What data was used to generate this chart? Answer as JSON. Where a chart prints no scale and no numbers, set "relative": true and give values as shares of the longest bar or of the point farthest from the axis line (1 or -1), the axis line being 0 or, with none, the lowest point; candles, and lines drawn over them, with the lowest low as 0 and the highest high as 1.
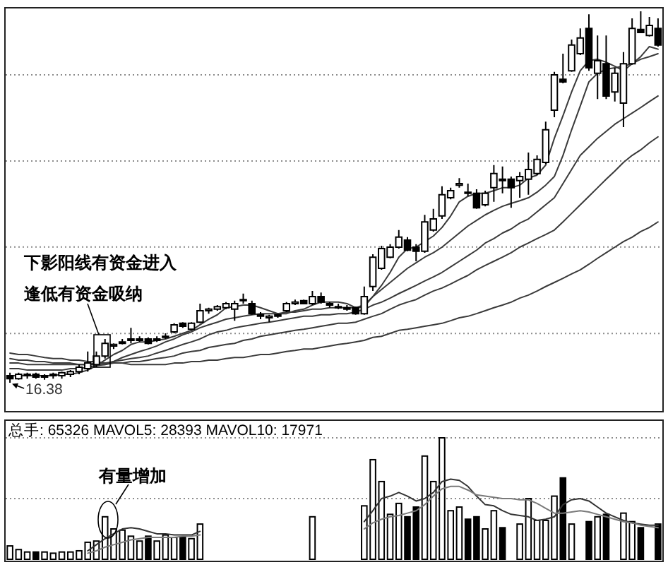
{
  "chart_data": [
    {
      "type": "candlestick",
      "relative": true,
      "grid": "y",
      "color": "#000000",
      "categories": [
        null,
        null,
        null,
        null,
        null,
        null,
        null,
        null,
        null,
        null,
        null,
        null,
        null,
        null,
        null,
        null,
        null,
        null,
        null,
        null,
        null,
        null,
        null,
        null,
        null,
        null,
        null,
        null,
        null,
        null,
        null,
        null,
        null,
        null,
        null,
        null,
        null,
        null,
        null,
        null,
        null,
        null,
        null,
        null,
        null,
        null,
        null,
        null,
        null,
        null,
        null,
        null,
        null,
        null,
        null,
        null,
        null,
        null,
        null,
        null,
        null,
        null,
        null,
        null,
        null,
        null,
        null,
        null,
        null,
        null,
        null,
        null,
        null,
        null,
        null,
        null
      ],
      "ohlc": [
        [
          0.019,
          0.027,
          0,
          0.011
        ],
        [
          0.011,
          0.027,
          0.008,
          0.023
        ],
        [
          0.019,
          0.027,
          0.011,
          0.023
        ],
        [
          0.023,
          0.027,
          0.011,
          0.015
        ],
        [
          0.015,
          0.023,
          0.008,
          0.019
        ],
        [
          0.019,
          0.027,
          0.011,
          0.023
        ],
        [
          0.019,
          0.03,
          0.011,
          0.027
        ],
        [
          0.023,
          0.034,
          0.015,
          0.03
        ],
        [
          0.03,
          0.049,
          0.023,
          0.042
        ],
        [
          0.038,
          0.084,
          0.03,
          0.053
        ],
        [
          0.049,
          0.084,
          0.042,
          0.072
        ],
        [
          0.072,
          0.118,
          0.065,
          0.106
        ],
        [
          0.099,
          0.106,
          0.091,
          0.103
        ],
        [
          0.106,
          0.118,
          0.103,
          0.11
        ],
        [
          0.114,
          0.148,
          0.106,
          0.118
        ],
        [
          0.114,
          0.125,
          0.11,
          0.118
        ],
        [
          0.118,
          0.122,
          0.103,
          0.106
        ],
        [
          0.114,
          0.125,
          0.11,
          0.118
        ],
        [
          0.122,
          0.133,
          0.118,
          0.125
        ],
        [
          0.137,
          0.16,
          0.133,
          0.156
        ],
        [
          0.16,
          0.163,
          0.148,
          0.152
        ],
        [
          0.144,
          0.163,
          0.141,
          0.16
        ],
        [
          0.163,
          0.213,
          0.16,
          0.194
        ],
        [
          0.194,
          0.202,
          0.186,
          0.198
        ],
        [
          0.198,
          0.209,
          0.194,
          0.205
        ],
        [
          0.202,
          0.217,
          0.198,
          0.213
        ],
        [
          0.198,
          0.221,
          0.167,
          0.213
        ],
        [
          0.221,
          0.24,
          0.213,
          0.224
        ],
        [
          0.213,
          0.221,
          0.183,
          0.186
        ],
        [
          0.183,
          0.19,
          0.171,
          0.179
        ],
        [
          0.175,
          0.183,
          0.163,
          0.179
        ],
        [
          0.179,
          0.186,
          0.175,
          0.183
        ],
        [
          0.194,
          0.217,
          0.19,
          0.213
        ],
        [
          0.213,
          0.224,
          0.209,
          0.217
        ],
        [
          0.221,
          0.224,
          0.213,
          0.213
        ],
        [
          0.213,
          0.247,
          0.209,
          0.232
        ],
        [
          0.232,
          0.243,
          0.213,
          0.217
        ],
        [
          0.209,
          0.217,
          0.202,
          0.213
        ],
        [
          0.205,
          0.213,
          0.198,
          0.202
        ],
        [
          0.202,
          0.209,
          0.194,
          0.198
        ],
        [
          0.202,
          0.205,
          0.183,
          0.186
        ],
        [
          0.186,
          0.259,
          0.183,
          0.232
        ],
        [
          0.259,
          0.346,
          0.247,
          0.338
        ],
        [
          0.308,
          0.369,
          0.304,
          0.361
        ],
        [
          0.338,
          0.373,
          0.335,
          0.365
        ],
        [
          0.365,
          0.411,
          0.361,
          0.392
        ],
        [
          0.384,
          0.392,
          0.354,
          0.357
        ],
        [
          0.365,
          0.373,
          0.327,
          0.354
        ],
        [
          0.354,
          0.452,
          0.35,
          0.433
        ],
        [
          0.411,
          0.468,
          0.407,
          0.441
        ],
        [
          0.449,
          0.529,
          0.441,
          0.506
        ],
        [
          0.498,
          0.525,
          0.494,
          0.517
        ],
        [
          0.532,
          0.551,
          0.525,
          0.536
        ],
        [
          0.513,
          0.536,
          0.502,
          0.51
        ],
        [
          0.51,
          0.521,
          0.468,
          0.471
        ],
        [
          0.479,
          0.517,
          0.475,
          0.51
        ],
        [
          0.525,
          0.586,
          0.487,
          0.563
        ],
        [
          0.548,
          0.582,
          0.51,
          0.544
        ],
        [
          0.548,
          0.555,
          0.471,
          0.525
        ],
        [
          0.544,
          0.567,
          0.498,
          0.555
        ],
        [
          0.548,
          0.62,
          0.506,
          0.574
        ],
        [
          0.563,
          0.612,
          0.559,
          0.601
        ],
        [
          0.593,
          0.703,
          0.589,
          0.681
        ],
        [
          0.734,
          0.837,
          0.715,
          0.829
        ],
        [
          0.817,
          0.886,
          0.806,
          0.81
        ],
        [
          0.84,
          0.924,
          0.837,
          0.909
        ],
        [
          0.886,
          0.954,
          0.882,
          0.928
        ],
        [
          0.954,
          0.992,
          0.84,
          0.848
        ],
        [
          0.833,
          0.935,
          0.764,
          0.867
        ],
        [
          0.859,
          0.935,
          0.764,
          0.772
        ],
        [
          0.783,
          0.848,
          0.757,
          0.833
        ],
        [
          0.753,
          0.89,
          0.688,
          0.859
        ],
        [
          0.859,
          0.981,
          0.856,
          0.954
        ],
        [
          0.951,
          1,
          0.943,
          0.943
        ],
        [
          0.935,
          0.985,
          0.932,
          0.962
        ],
        [
          0.954,
          0.981,
          0.905,
          0.909
        ]
      ],
      "series": [
        {
          "type": "line",
          "color": "#3a3a3a",
          "values": [
            0.019,
            0.019,
            0.019,
            0.019,
            0.019,
            0.019,
            0.023,
            0.023,
            0.027,
            0.034,
            0.046,
            0.061,
            0.076,
            0.087,
            0.103,
            0.11,
            0.11,
            0.114,
            0.118,
            0.125,
            0.133,
            0.141,
            0.156,
            0.171,
            0.183,
            0.202,
            0.205,
            0.209,
            0.209,
            0.202,
            0.194,
            0.186,
            0.186,
            0.194,
            0.198,
            0.209,
            0.217,
            0.217,
            0.217,
            0.213,
            0.202,
            0.205,
            0.232,
            0.262,
            0.297,
            0.338,
            0.361,
            0.365,
            0.38,
            0.395,
            0.418,
            0.449,
            0.487,
            0.502,
            0.51,
            0.51,
            0.517,
            0.525,
            0.525,
            0.532,
            0.551,
            0.559,
            0.586,
            0.658,
            0.719,
            0.783,
            0.84,
            0.867,
            0.871,
            0.863,
            0.852,
            0.84,
            0.859,
            0.878,
            0.905,
            0.898
          ]
        },
        {
          "type": "line",
          "color": "#3a3a3a",
          "values": [
            0.038,
            0.038,
            0.034,
            0.034,
            0.034,
            0.034,
            0.034,
            0.038,
            0.038,
            0.042,
            0.046,
            0.049,
            0.057,
            0.068,
            0.076,
            0.084,
            0.091,
            0.099,
            0.11,
            0.118,
            0.129,
            0.137,
            0.148,
            0.156,
            0.163,
            0.171,
            0.175,
            0.179,
            0.183,
            0.186,
            0.186,
            0.186,
            0.19,
            0.19,
            0.194,
            0.198,
            0.198,
            0.202,
            0.202,
            0.202,
            0.202,
            0.209,
            0.232,
            0.251,
            0.27,
            0.289,
            0.308,
            0.323,
            0.338,
            0.35,
            0.365,
            0.384,
            0.403,
            0.422,
            0.437,
            0.452,
            0.464,
            0.475,
            0.483,
            0.49,
            0.498,
            0.513,
            0.532,
            0.555,
            0.612,
            0.681,
            0.745,
            0.81,
            0.833,
            0.844,
            0.848,
            0.852,
            0.859,
            0.871,
            0.878,
            0.886
          ]
        },
        {
          "type": "line",
          "color": "#3a3a3a",
          "values": [
            0.053,
            0.053,
            0.049,
            0.049,
            0.049,
            0.049,
            0.049,
            0.049,
            0.049,
            0.049,
            0.053,
            0.053,
            0.057,
            0.061,
            0.065,
            0.068,
            0.072,
            0.08,
            0.087,
            0.095,
            0.103,
            0.11,
            0.118,
            0.129,
            0.137,
            0.141,
            0.148,
            0.152,
            0.156,
            0.16,
            0.163,
            0.167,
            0.171,
            0.175,
            0.179,
            0.179,
            0.183,
            0.183,
            0.186,
            0.186,
            0.19,
            0.198,
            0.209,
            0.217,
            0.228,
            0.24,
            0.251,
            0.262,
            0.274,
            0.285,
            0.297,
            0.312,
            0.327,
            0.342,
            0.357,
            0.376,
            0.388,
            0.403,
            0.414,
            0.43,
            0.441,
            0.46,
            0.479,
            0.498,
            0.536,
            0.574,
            0.612,
            0.635,
            0.658,
            0.677,
            0.696,
            0.711,
            0.726,
            0.741,
            0.757,
            0.772
          ]
        },
        {
          "type": "line",
          "color": "#3a3a3a",
          "values": [
            0.065,
            0.061,
            0.061,
            0.057,
            0.057,
            0.053,
            0.053,
            0.053,
            0.049,
            0.049,
            0.049,
            0.049,
            0.053,
            0.053,
            0.057,
            0.057,
            0.061,
            0.065,
            0.068,
            0.072,
            0.08,
            0.084,
            0.087,
            0.095,
            0.099,
            0.103,
            0.106,
            0.114,
            0.118,
            0.125,
            0.129,
            0.133,
            0.137,
            0.141,
            0.144,
            0.148,
            0.152,
            0.156,
            0.16,
            0.16,
            0.163,
            0.171,
            0.179,
            0.186,
            0.198,
            0.209,
            0.217,
            0.224,
            0.236,
            0.247,
            0.255,
            0.266,
            0.278,
            0.289,
            0.304,
            0.316,
            0.327,
            0.338,
            0.35,
            0.365,
            0.376,
            0.388,
            0.399,
            0.411,
            0.433,
            0.456,
            0.479,
            0.502,
            0.525,
            0.548,
            0.57,
            0.593,
            0.612,
            0.627,
            0.646,
            0.662
          ]
        },
        {
          "type": "line",
          "color": "#3a3a3a",
          "values": [
            0.08,
            0.076,
            0.076,
            0.072,
            0.068,
            0.065,
            0.065,
            0.061,
            0.061,
            0.057,
            0.057,
            0.053,
            0.053,
            0.053,
            0.049,
            0.049,
            0.049,
            0.049,
            0.049,
            0.053,
            0.053,
            0.057,
            0.057,
            0.061,
            0.061,
            0.065,
            0.068,
            0.068,
            0.072,
            0.076,
            0.076,
            0.08,
            0.084,
            0.087,
            0.091,
            0.091,
            0.095,
            0.099,
            0.103,
            0.106,
            0.11,
            0.114,
            0.122,
            0.125,
            0.133,
            0.141,
            0.144,
            0.148,
            0.152,
            0.156,
            0.16,
            0.167,
            0.175,
            0.179,
            0.186,
            0.194,
            0.202,
            0.209,
            0.217,
            0.228,
            0.236,
            0.247,
            0.259,
            0.27,
            0.281,
            0.293,
            0.304,
            0.319,
            0.335,
            0.35,
            0.365,
            0.38,
            0.392,
            0.407,
            0.418,
            0.433
          ]
        }
      ],
      "annotations": [
        "下影阳线有资金进入",
        "逢低有资金吸纳",
        {
          "text": "16.38",
          "y": 0
        }
      ]
    },
    {
      "type": "bar",
      "relative": true,
      "title": "总手: 65326 MAVOL5: 28393 MAVOL10: 17971",
      "ref_lines": [
        {
          "axis": "y",
          "value": 0.5,
          "line_style": "dotted",
          "color": "#8c8c8c"
        },
        {
          "axis": "y",
          "value": 1,
          "line_style": "dotted",
          "color": "#8c8c8c"
        }
      ],
      "categories": [
        null,
        null,
        null,
        null,
        null,
        null,
        null,
        null,
        null,
        null,
        null,
        null,
        null,
        null,
        null,
        null,
        null,
        null,
        null,
        null,
        null,
        null,
        null,
        null,
        null,
        null,
        null,
        null,
        null,
        null,
        null,
        null,
        null,
        null,
        null,
        null,
        null,
        null,
        null,
        null,
        null,
        null,
        null,
        null,
        null,
        null,
        null,
        null,
        null,
        null,
        null,
        null,
        null,
        null,
        null,
        null,
        null,
        null,
        null,
        null,
        null,
        null,
        null,
        null,
        null,
        null,
        null,
        null,
        null,
        null,
        null,
        null,
        null,
        null,
        null,
        null
      ],
      "series": [
        {
          "type": "bar",
          "color": "#000000",
          "values": [
            0.11,
            0.08,
            0.06,
            0.06,
            0.06,
            0.05,
            0.06,
            0.06,
            0.07,
            0.14,
            0.15,
            0.35,
            0.25,
            0.24,
            0.19,
            0.15,
            0.19,
            0.15,
            0.2,
            0.18,
            0.18,
            0.17,
            0.29,
            null,
            null,
            null,
            null,
            null,
            null,
            null,
            null,
            null,
            null,
            null,
            null,
            0.35,
            null,
            null,
            null,
            null,
            null,
            0.44,
            0.82,
            0.64,
            0.37,
            0.46,
            0.35,
            0.43,
            0.85,
            0.64,
            1,
            0.4,
            0.43,
            0.33,
            0.35,
            0.25,
            0.4,
            0.26,
            null,
            0.29,
            0.5,
            0.32,
            0.32,
            0.52,
            0.67,
            0.29,
            null,
            0.31,
            0.35,
            0.37,
            null,
            0.38,
            0.31,
            0.26,
            null,
            0.29
          ],
          "colors": [
            "#ffffff",
            "#ffffff",
            "#ffffff",
            "#000000",
            "#ffffff",
            "#ffffff",
            "#ffffff",
            "#ffffff",
            "#ffffff",
            "#ffffff",
            "#ffffff",
            "#ffffff",
            "#ffffff",
            "#ffffff",
            "#ffffff",
            "#ffffff",
            "#000000",
            "#ffffff",
            "#ffffff",
            "#ffffff",
            "#000000",
            "#ffffff",
            "#ffffff",
            null,
            null,
            null,
            null,
            null,
            null,
            null,
            null,
            null,
            null,
            null,
            null,
            "#ffffff",
            null,
            null,
            null,
            null,
            null,
            "#ffffff",
            "#ffffff",
            "#ffffff",
            "#ffffff",
            "#ffffff",
            "#000000",
            "#000000",
            "#ffffff",
            "#ffffff",
            "#ffffff",
            "#ffffff",
            "#ffffff",
            "#000000",
            "#000000",
            "#ffffff",
            "#ffffff",
            "#000000",
            null,
            "#ffffff",
            "#ffffff",
            "#ffffff",
            "#ffffff",
            "#ffffff",
            "#000000",
            "#ffffff",
            null,
            "#000000",
            "#ffffff",
            "#000000",
            null,
            "#ffffff",
            "#ffffff",
            "#000000",
            null,
            "#000000"
          ]
        },
        {
          "type": "line",
          "color": "#333333",
          "values": [
            null,
            null,
            null,
            null,
            null,
            null,
            null,
            null,
            null,
            0.07,
            0.12,
            0.17,
            0.21,
            0.25,
            0.26,
            0.25,
            0.23,
            0.21,
            0.21,
            0.2,
            0.2,
            0.2,
            0.23,
            null,
            null,
            null,
            null,
            null,
            null,
            null,
            null,
            null,
            null,
            null,
            null,
            null,
            null,
            null,
            null,
            null,
            null,
            0.31,
            0.4,
            0.5,
            0.52,
            0.55,
            0.52,
            0.48,
            0.5,
            0.55,
            0.64,
            0.66,
            0.65,
            0.6,
            0.52,
            0.45,
            0.44,
            0.4,
            0.37,
            0.36,
            0.35,
            0.32,
            0.33,
            0.35,
            0.45,
            0.49,
            0.5,
            0.48,
            0.43,
            0.38,
            0.35,
            0.32,
            0.3,
            0.29,
            0.28,
            0.28
          ]
        },
        {
          "type": "line",
          "color": "#7a7a7a",
          "values": [
            null,
            null,
            null,
            null,
            null,
            null,
            null,
            null,
            null,
            0.05,
            0.07,
            0.1,
            0.12,
            0.14,
            0.16,
            0.17,
            0.18,
            0.18,
            0.18,
            0.18,
            0.19,
            0.19,
            0.2,
            null,
            null,
            null,
            null,
            null,
            null,
            null,
            null,
            null,
            null,
            null,
            null,
            null,
            null,
            null,
            null,
            null,
            null,
            0.25,
            0.3,
            0.33,
            0.35,
            0.36,
            0.38,
            0.4,
            0.45,
            0.52,
            0.58,
            0.6,
            0.6,
            0.57,
            0.53,
            0.52,
            0.51,
            0.5,
            0.5,
            0.49,
            0.49,
            0.46,
            0.42,
            0.38,
            0.38,
            0.39,
            0.4,
            0.39,
            0.37,
            0.35,
            0.33,
            0.31,
            0.3,
            0.28,
            0.27,
            0.26
          ]
        }
      ],
      "annotations": [
        "有量增加"
      ]
    }
  ]
}
